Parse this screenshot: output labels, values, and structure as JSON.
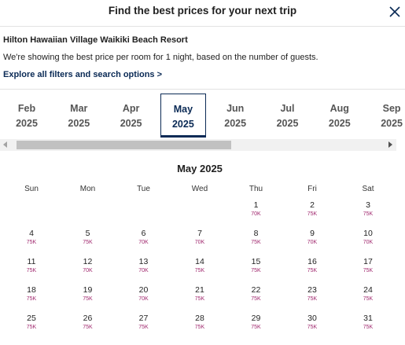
{
  "header": {
    "title": "Find the best prices for your next trip"
  },
  "hotel": {
    "name": "Hilton Hawaiian Village Waikiki Beach Resort",
    "description": "We're showing the best price per room for 1 night, based on the number of guests.",
    "explore_link": "Explore all filters and search options >"
  },
  "months": [
    {
      "month": "Feb",
      "year": "2025",
      "selected": false
    },
    {
      "month": "Mar",
      "year": "2025",
      "selected": false
    },
    {
      "month": "Apr",
      "year": "2025",
      "selected": false
    },
    {
      "month": "May",
      "year": "2025",
      "selected": true
    },
    {
      "month": "Jun",
      "year": "2025",
      "selected": false
    },
    {
      "month": "Jul",
      "year": "2025",
      "selected": false
    },
    {
      "month": "Aug",
      "year": "2025",
      "selected": false
    },
    {
      "month": "Sep",
      "year": "2025",
      "selected": false
    }
  ],
  "calendar": {
    "title": "May 2025",
    "weekdays": [
      "Sun",
      "Mon",
      "Tue",
      "Wed",
      "Thu",
      "Fri",
      "Sat"
    ],
    "days": [
      {
        "day": "1",
        "price": "70K"
      },
      {
        "day": "2",
        "price": "75K"
      },
      {
        "day": "3",
        "price": "75K"
      },
      {
        "day": "4",
        "price": "75K"
      },
      {
        "day": "5",
        "price": "75K"
      },
      {
        "day": "6",
        "price": "70K"
      },
      {
        "day": "7",
        "price": "70K"
      },
      {
        "day": "8",
        "price": "75K"
      },
      {
        "day": "9",
        "price": "70K"
      },
      {
        "day": "10",
        "price": "70K"
      },
      {
        "day": "11",
        "price": "75K"
      },
      {
        "day": "12",
        "price": "70K"
      },
      {
        "day": "13",
        "price": "70K"
      },
      {
        "day": "14",
        "price": "75K"
      },
      {
        "day": "15",
        "price": "75K"
      },
      {
        "day": "16",
        "price": "75K"
      },
      {
        "day": "17",
        "price": "75K"
      },
      {
        "day": "18",
        "price": "75K"
      },
      {
        "day": "19",
        "price": "75K"
      },
      {
        "day": "20",
        "price": "70K"
      },
      {
        "day": "21",
        "price": "75K"
      },
      {
        "day": "22",
        "price": "75K"
      },
      {
        "day": "23",
        "price": "75K"
      },
      {
        "day": "24",
        "price": "75K"
      },
      {
        "day": "25",
        "price": "75K"
      },
      {
        "day": "26",
        "price": "75K"
      },
      {
        "day": "27",
        "price": "75K"
      },
      {
        "day": "28",
        "price": "75K"
      },
      {
        "day": "29",
        "price": "75K"
      },
      {
        "day": "30",
        "price": "75K"
      },
      {
        "day": "31",
        "price": "75K"
      }
    ]
  },
  "colors": {
    "accent": "#0a2a55",
    "price": "#a0286e"
  },
  "icons": {
    "close": "close-icon",
    "scroll_left": "chevron-left-icon",
    "scroll_right": "chevron-right-icon"
  }
}
